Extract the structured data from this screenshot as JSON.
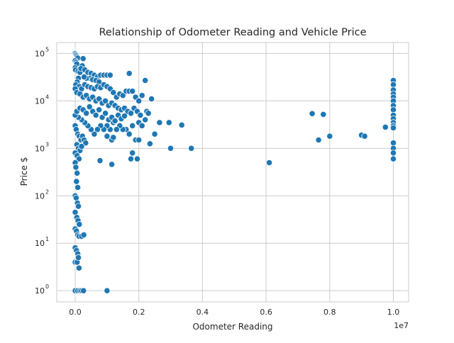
{
  "chart_data": {
    "type": "scatter",
    "title": "Relationship of Odometer Reading and Vehicle Price",
    "xlabel": "Odometer Reading",
    "ylabel": "Price $",
    "x_offset_label": "1e7",
    "x_scale_factor": 10000000,
    "xlim": [
      -580000,
      10480000
    ],
    "ylim": [
      0.58,
      170000
    ],
    "yscale": "log",
    "grid": true,
    "point_color": "#1f77b4",
    "x_ticks": [
      {
        "value": 0,
        "label": "0.0"
      },
      {
        "value": 2000000,
        "label": "0.2"
      },
      {
        "value": 4000000,
        "label": "0.4"
      },
      {
        "value": 6000000,
        "label": "0.6"
      },
      {
        "value": 8000000,
        "label": "0.8"
      },
      {
        "value": 10000000,
        "label": "1.0"
      }
    ],
    "y_ticks": [
      {
        "value": 1,
        "base": "10",
        "exp": "0"
      },
      {
        "value": 10,
        "base": "10",
        "exp": "1"
      },
      {
        "value": 100,
        "base": "10",
        "exp": "2"
      },
      {
        "value": 1000,
        "base": "10",
        "exp": "3"
      },
      {
        "value": 10000,
        "base": "10",
        "exp": "4"
      },
      {
        "value": 100000,
        "base": "10",
        "exp": "5"
      }
    ],
    "points": [
      [
        0,
        100000
      ],
      [
        20000,
        95000
      ],
      [
        40000,
        90000
      ],
      [
        60000,
        85000
      ],
      [
        80000,
        80000
      ],
      [
        0,
        70000
      ],
      [
        30000,
        65000
      ],
      [
        50000,
        60000
      ],
      [
        0,
        50000
      ],
      [
        10000,
        45000
      ],
      [
        90000,
        42000
      ],
      [
        150000,
        40000
      ],
      [
        250000,
        78000
      ],
      [
        220000,
        55000
      ],
      [
        180000,
        48000
      ],
      [
        300000,
        45000
      ],
      [
        400000,
        40000
      ],
      [
        500000,
        38000
      ],
      [
        600000,
        35000
      ],
      [
        700000,
        32000
      ],
      [
        800000,
        35000
      ],
      [
        900000,
        35000
      ],
      [
        1000000,
        35000
      ],
      [
        1100000,
        35000
      ],
      [
        1700000,
        38000
      ],
      [
        2200000,
        27000
      ],
      [
        450000,
        30000
      ],
      [
        550000,
        28000
      ],
      [
        650000,
        27000
      ],
      [
        750000,
        25000
      ],
      [
        350000,
        30000
      ],
      [
        280000,
        32000
      ],
      [
        100000,
        30000
      ],
      [
        60000,
        25000
      ],
      [
        20000,
        22000
      ],
      [
        130000,
        20000
      ],
      [
        200000,
        18000
      ],
      [
        300000,
        22000
      ],
      [
        400000,
        20000
      ],
      [
        500000,
        19000
      ],
      [
        600000,
        18000
      ],
      [
        700000,
        20000
      ],
      [
        800000,
        19000
      ],
      [
        900000,
        22000
      ],
      [
        1000000,
        20000
      ],
      [
        1100000,
        18000
      ],
      [
        1200000,
        15000
      ],
      [
        1300000,
        12000
      ],
      [
        1400000,
        14000
      ],
      [
        1500000,
        13000
      ],
      [
        1600000,
        16000
      ],
      [
        1700000,
        16000
      ],
      [
        1800000,
        16000
      ],
      [
        1900000,
        12000
      ],
      [
        2000000,
        10000
      ],
      [
        2100000,
        13000
      ],
      [
        2400000,
        11000
      ],
      [
        0,
        18000
      ],
      [
        50000,
        15000
      ],
      [
        150000,
        14000
      ],
      [
        250000,
        12000
      ],
      [
        350000,
        13000
      ],
      [
        450000,
        11000
      ],
      [
        550000,
        12000
      ],
      [
        650000,
        10000
      ],
      [
        750000,
        11000
      ],
      [
        850000,
        9000
      ],
      [
        950000,
        10000
      ],
      [
        1050000,
        8000
      ],
      [
        1150000,
        9000
      ],
      [
        1250000,
        8000
      ],
      [
        1350000,
        7000
      ],
      [
        1450000,
        6500
      ],
      [
        1550000,
        7000
      ],
      [
        1650000,
        6000
      ],
      [
        1750000,
        5500
      ],
      [
        1850000,
        7000
      ],
      [
        1950000,
        6000
      ],
      [
        2050000,
        5000
      ],
      [
        2250000,
        6000
      ],
      [
        2300000,
        5500
      ],
      [
        2650000,
        3500
      ],
      [
        2950000,
        3500
      ],
      [
        3350000,
        3100
      ],
      [
        2200000,
        4000
      ],
      [
        2000000,
        3500
      ],
      [
        1800000,
        3000
      ],
      [
        2100000,
        3000
      ],
      [
        2500000,
        2000
      ],
      [
        1600000,
        2500
      ],
      [
        1700000,
        2000
      ],
      [
        1500000,
        2500
      ],
      [
        1400000,
        3000
      ],
      [
        1300000,
        2500
      ],
      [
        1200000,
        3500
      ],
      [
        1100000,
        2500
      ],
      [
        1000000,
        3000
      ],
      [
        900000,
        2500
      ],
      [
        800000,
        3000
      ],
      [
        700000,
        2500
      ],
      [
        600000,
        2000
      ],
      [
        500000,
        2500
      ],
      [
        400000,
        3000
      ],
      [
        300000,
        3500
      ],
      [
        200000,
        4000
      ],
      [
        100000,
        4500
      ],
      [
        0,
        5000
      ],
      [
        50000,
        6000
      ],
      [
        150000,
        7000
      ],
      [
        250000,
        6500
      ],
      [
        350000,
        5500
      ],
      [
        450000,
        7500
      ],
      [
        550000,
        6000
      ],
      [
        650000,
        5000
      ],
      [
        750000,
        6500
      ],
      [
        850000,
        4500
      ],
      [
        950000,
        5500
      ],
      [
        1050000,
        4000
      ],
      [
        1150000,
        4500
      ],
      [
        1250000,
        3800
      ],
      [
        1350000,
        5000
      ],
      [
        1450000,
        4200
      ],
      [
        1550000,
        4800
      ],
      [
        0,
        3000
      ],
      [
        30000,
        2500
      ],
      [
        80000,
        2000
      ],
      [
        130000,
        1800
      ],
      [
        180000,
        1500
      ],
      [
        230000,
        1800
      ],
      [
        280000,
        1500
      ],
      [
        330000,
        1300
      ],
      [
        50000,
        1200
      ],
      [
        100000,
        1000
      ],
      [
        150000,
        900
      ],
      [
        200000,
        1100
      ],
      [
        0,
        800
      ],
      [
        60000,
        700
      ],
      [
        120000,
        600
      ],
      [
        1150000,
        1500
      ],
      [
        1000000,
        1800
      ],
      [
        1200000,
        1700
      ],
      [
        1900000,
        1500
      ],
      [
        2000000,
        1500
      ],
      [
        2350000,
        1250
      ],
      [
        3000000,
        1000
      ],
      [
        3650000,
        1000
      ],
      [
        1800000,
        800
      ],
      [
        1750000,
        600
      ],
      [
        1950000,
        600
      ],
      [
        1150000,
        460
      ],
      [
        780000,
        550
      ],
      [
        0,
        500
      ],
      [
        20000,
        400
      ],
      [
        60000,
        300
      ],
      [
        40000,
        200
      ],
      [
        80000,
        150
      ],
      [
        0,
        100
      ],
      [
        30000,
        90
      ],
      [
        70000,
        70
      ],
      [
        100000,
        60
      ],
      [
        0,
        45
      ],
      [
        50000,
        35
      ],
      [
        90000,
        30
      ],
      [
        130000,
        25
      ],
      [
        0,
        20
      ],
      [
        40000,
        18
      ],
      [
        80000,
        15
      ],
      [
        120000,
        14
      ],
      [
        200000,
        14
      ],
      [
        270000,
        15
      ],
      [
        0,
        8
      ],
      [
        40000,
        7
      ],
      [
        80000,
        6
      ],
      [
        110000,
        5
      ],
      [
        0,
        4
      ],
      [
        60000,
        4
      ],
      [
        100000,
        5
      ],
      [
        120000,
        3
      ],
      [
        0,
        1
      ],
      [
        80000,
        1
      ],
      [
        150000,
        1
      ],
      [
        200000,
        1
      ],
      [
        260000,
        1
      ],
      [
        1000000,
        1
      ],
      [
        6100000,
        500
      ],
      [
        7450000,
        5400
      ],
      [
        7800000,
        5200
      ],
      [
        7650000,
        1500
      ],
      [
        8000000,
        1800
      ],
      [
        9000000,
        1900
      ],
      [
        9100000,
        1800
      ],
      [
        9750000,
        2800
      ],
      [
        10000000,
        27000
      ],
      [
        10000000,
        22000
      ],
      [
        10000000,
        17000
      ],
      [
        10000000,
        14000
      ],
      [
        10000000,
        12000
      ],
      [
        10000000,
        10000
      ],
      [
        10000000,
        8000
      ],
      [
        10000000,
        6500
      ],
      [
        10000000,
        5000
      ],
      [
        10000000,
        4200
      ],
      [
        10000000,
        3500
      ],
      [
        10000000,
        3000
      ],
      [
        10000000,
        2700
      ],
      [
        10000000,
        1300
      ],
      [
        10000000,
        1000
      ],
      [
        10000000,
        800
      ],
      [
        10000000,
        600
      ]
    ]
  }
}
